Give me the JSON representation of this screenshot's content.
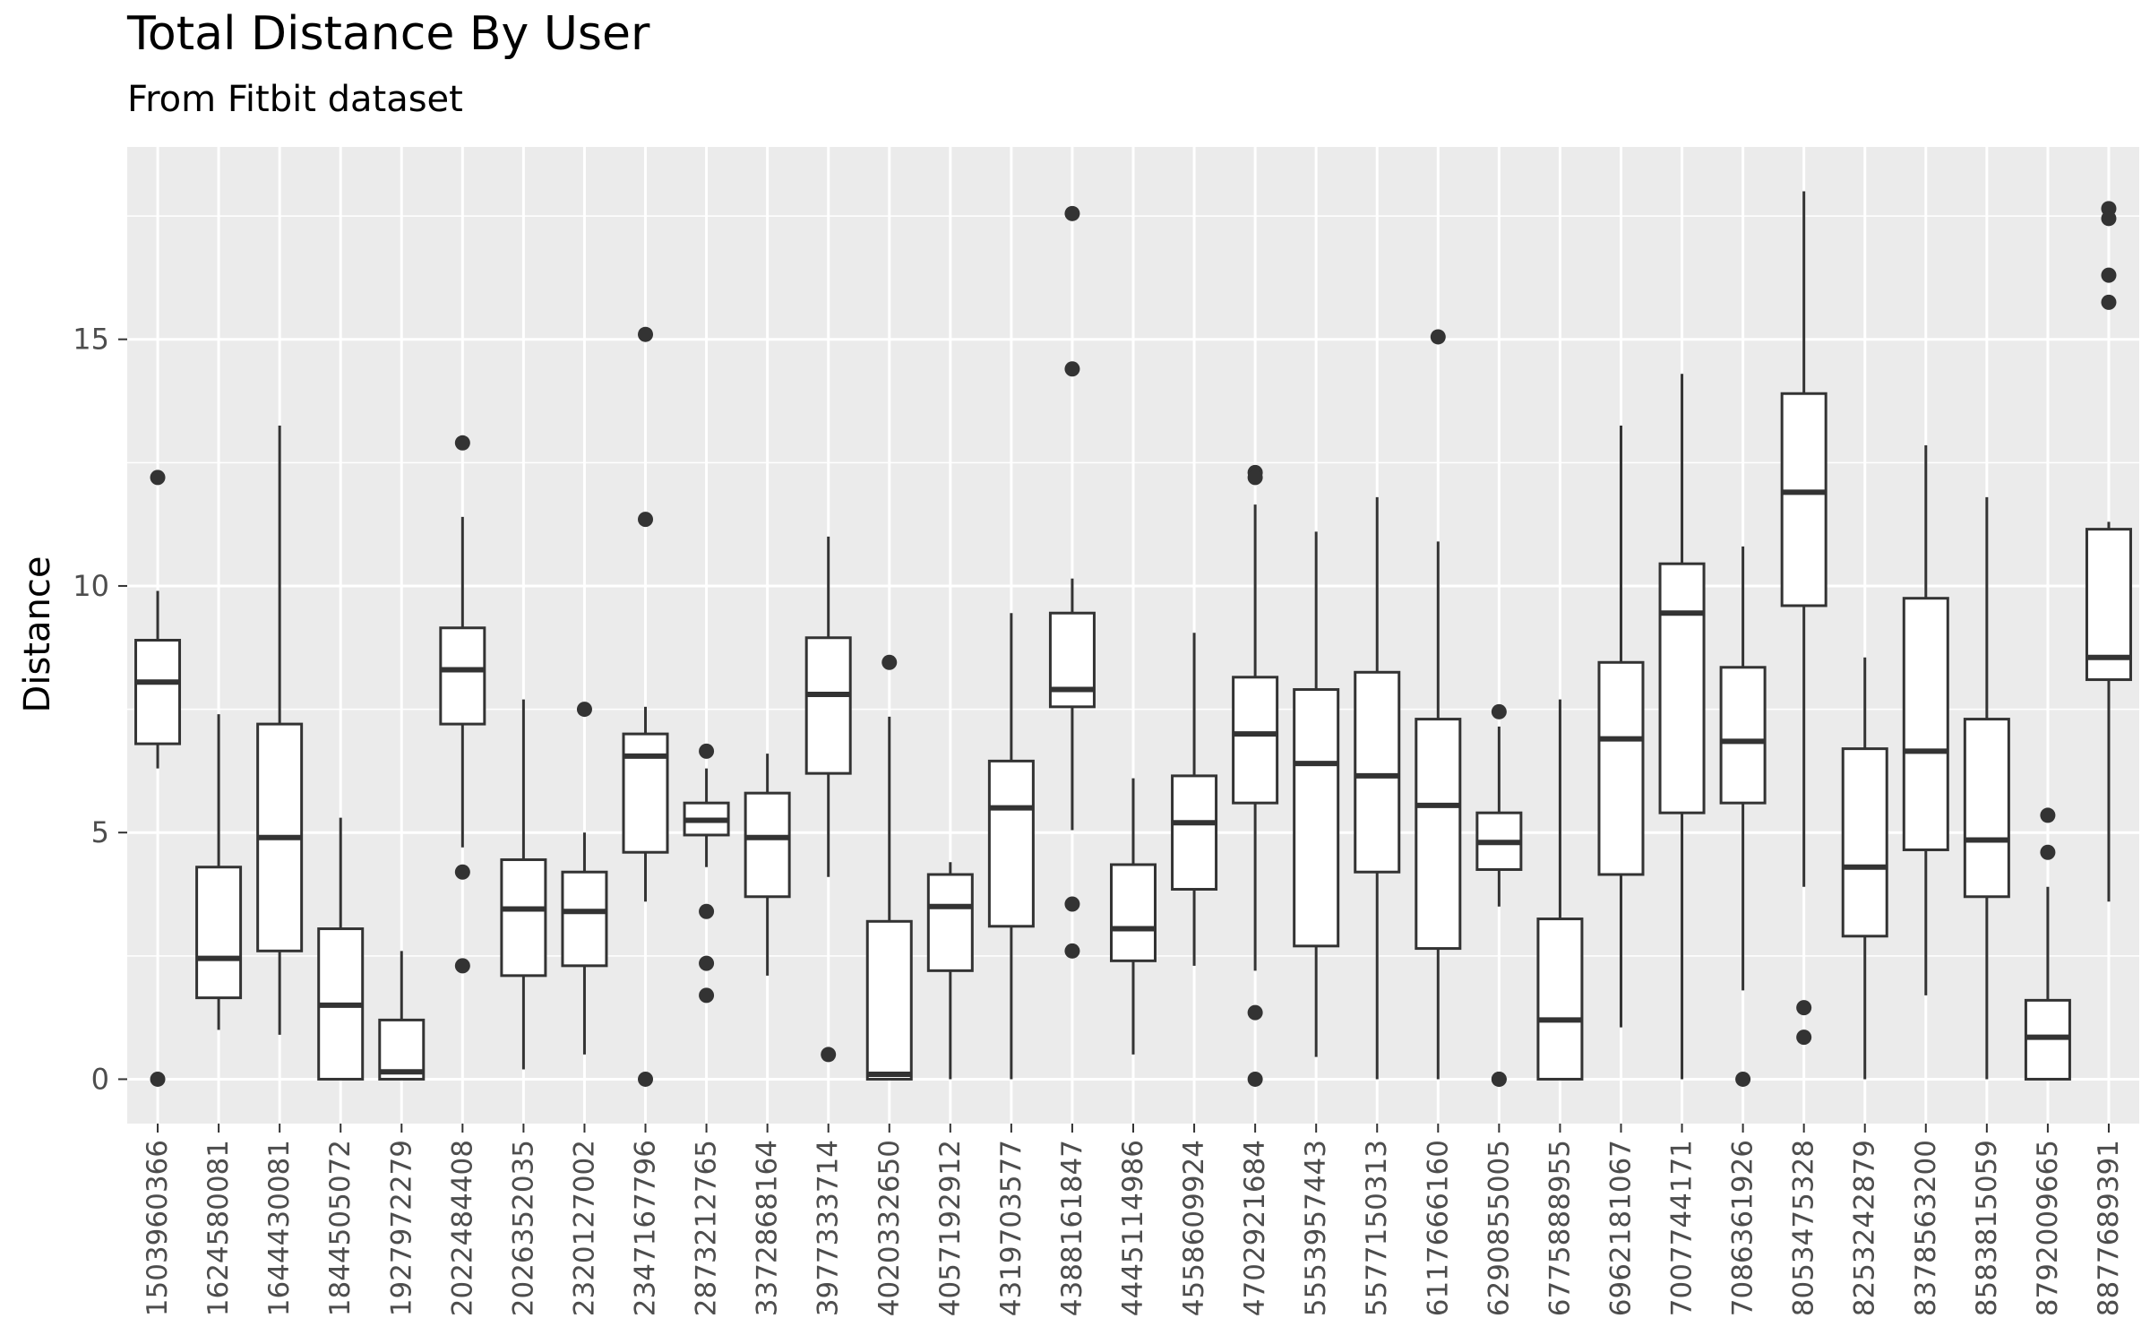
{
  "chart_data": {
    "type": "boxplot",
    "title": "Total Distance By User",
    "subtitle": "From Fitbit dataset",
    "xlabel": "",
    "ylabel": "Distance",
    "ylim": [
      -0.9,
      18.9
    ],
    "yticks": [
      0,
      5,
      10,
      15
    ],
    "grid": true,
    "legend": "none",
    "colors": {
      "panel": "#ebebeb",
      "grid": "#ffffff",
      "box_fill": "#ffffff",
      "box_line": "#333333",
      "outlier": "#333333",
      "tick_text": "#4d4d4d"
    },
    "categories": [
      "1503960366",
      "1624580081",
      "1644430081",
      "1844505072",
      "1927972279",
      "2022484408",
      "2026352035",
      "2320127002",
      "2347167796",
      "2873212765",
      "3372868164",
      "3977333714",
      "4020332650",
      "4057192912",
      "4319703577",
      "4388161847",
      "4445114986",
      "4558609924",
      "4702921684",
      "5553957443",
      "5577150313",
      "6117666160",
      "6290855005",
      "6775888955",
      "6962181067",
      "7007744171",
      "7086361926",
      "8053475328",
      "8253242879",
      "8378563200",
      "8583815059",
      "8792009665",
      "8877689391"
    ],
    "boxes": [
      {
        "lower": 6.3,
        "q1": 6.8,
        "median": 8.05,
        "q3": 8.9,
        "upper": 9.9,
        "outliers": [
          12.2,
          0
        ]
      },
      {
        "lower": 1.0,
        "q1": 1.65,
        "median": 2.45,
        "q3": 4.3,
        "upper": 7.4,
        "outliers": []
      },
      {
        "lower": 0.9,
        "q1": 2.6,
        "median": 4.9,
        "q3": 7.2,
        "upper": 13.25,
        "outliers": []
      },
      {
        "lower": 0,
        "q1": 0,
        "median": 1.5,
        "q3": 3.05,
        "upper": 5.3,
        "outliers": []
      },
      {
        "lower": 0,
        "q1": 0,
        "median": 0.15,
        "q3": 1.2,
        "upper": 2.6,
        "outliers": []
      },
      {
        "lower": 4.7,
        "q1": 7.2,
        "median": 8.3,
        "q3": 9.15,
        "upper": 11.4,
        "outliers": [
          12.9,
          4.2,
          2.3
        ]
      },
      {
        "lower": 0.2,
        "q1": 2.1,
        "median": 3.45,
        "q3": 4.45,
        "upper": 7.7,
        "outliers": []
      },
      {
        "lower": 0.5,
        "q1": 2.3,
        "median": 3.4,
        "q3": 4.2,
        "upper": 5.0,
        "outliers": [
          7.5
        ]
      },
      {
        "lower": 3.6,
        "q1": 4.6,
        "median": 6.55,
        "q3": 7.0,
        "upper": 7.55,
        "outliers": [
          15.1,
          11.35,
          0
        ]
      },
      {
        "lower": 4.3,
        "q1": 4.95,
        "median": 5.25,
        "q3": 5.6,
        "upper": 6.3,
        "outliers": [
          6.65,
          3.4,
          2.35,
          1.7
        ]
      },
      {
        "lower": 2.1,
        "q1": 3.7,
        "median": 4.9,
        "q3": 5.8,
        "upper": 6.6,
        "outliers": []
      },
      {
        "lower": 4.1,
        "q1": 6.2,
        "median": 7.8,
        "q3": 8.95,
        "upper": 11.0,
        "outliers": [
          0.5
        ]
      },
      {
        "lower": 0,
        "q1": 0,
        "median": 0.1,
        "q3": 3.2,
        "upper": 7.35,
        "outliers": [
          8.45
        ]
      },
      {
        "lower": 0,
        "q1": 2.2,
        "median": 3.5,
        "q3": 4.15,
        "upper": 4.4,
        "outliers": []
      },
      {
        "lower": 0,
        "q1": 3.1,
        "median": 5.5,
        "q3": 6.45,
        "upper": 9.45,
        "outliers": []
      },
      {
        "lower": 5.05,
        "q1": 7.55,
        "median": 7.9,
        "q3": 9.45,
        "upper": 10.15,
        "outliers": [
          17.55,
          14.4,
          3.55,
          2.6
        ]
      },
      {
        "lower": 0.5,
        "q1": 2.4,
        "median": 3.05,
        "q3": 4.35,
        "upper": 6.1,
        "outliers": []
      },
      {
        "lower": 2.3,
        "q1": 3.85,
        "median": 5.2,
        "q3": 6.15,
        "upper": 9.05,
        "outliers": []
      },
      {
        "lower": 2.2,
        "q1": 5.6,
        "median": 7.0,
        "q3": 8.15,
        "upper": 11.65,
        "outliers": [
          12.3,
          12.2,
          1.35,
          0
        ]
      },
      {
        "lower": 0.45,
        "q1": 2.7,
        "median": 6.4,
        "q3": 7.9,
        "upper": 11.1,
        "outliers": []
      },
      {
        "lower": 0,
        "q1": 4.2,
        "median": 6.15,
        "q3": 8.25,
        "upper": 11.8,
        "outliers": []
      },
      {
        "lower": 0,
        "q1": 2.65,
        "median": 5.55,
        "q3": 7.3,
        "upper": 10.9,
        "outliers": [
          15.05
        ]
      },
      {
        "lower": 3.5,
        "q1": 4.25,
        "median": 4.8,
        "q3": 5.4,
        "upper": 7.15,
        "outliers": [
          7.45,
          0,
          0
        ]
      },
      {
        "lower": 0,
        "q1": 0,
        "median": 1.2,
        "q3": 3.25,
        "upper": 7.7,
        "outliers": []
      },
      {
        "lower": 1.05,
        "q1": 4.15,
        "median": 6.9,
        "q3": 8.45,
        "upper": 13.25,
        "outliers": []
      },
      {
        "lower": 0,
        "q1": 5.4,
        "median": 9.45,
        "q3": 10.45,
        "upper": 14.3,
        "outliers": []
      },
      {
        "lower": 1.8,
        "q1": 5.6,
        "median": 6.85,
        "q3": 8.35,
        "upper": 10.8,
        "outliers": [
          0
        ]
      },
      {
        "lower": 3.9,
        "q1": 9.6,
        "median": 11.9,
        "q3": 13.9,
        "upper": 18.0,
        "outliers": [
          1.45,
          0.85
        ]
      },
      {
        "lower": 0,
        "q1": 2.9,
        "median": 4.3,
        "q3": 6.7,
        "upper": 8.55,
        "outliers": []
      },
      {
        "lower": 1.7,
        "q1": 4.65,
        "median": 6.65,
        "q3": 9.75,
        "upper": 12.85,
        "outliers": []
      },
      {
        "lower": 0,
        "q1": 3.7,
        "median": 4.85,
        "q3": 7.3,
        "upper": 11.8,
        "outliers": []
      },
      {
        "lower": 0,
        "q1": 0,
        "median": 0.85,
        "q3": 1.6,
        "upper": 3.9,
        "outliers": [
          5.35,
          4.6
        ]
      },
      {
        "lower": 3.6,
        "q1": 8.1,
        "median": 8.55,
        "q3": 11.15,
        "upper": 11.3,
        "outliers": [
          17.65,
          17.45,
          16.3,
          15.75
        ]
      }
    ]
  }
}
